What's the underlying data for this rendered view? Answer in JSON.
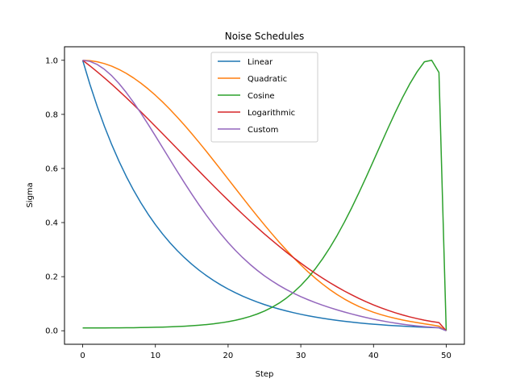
{
  "chart_data": {
    "type": "line",
    "title": "Noise Schedules",
    "xlabel": "Step",
    "ylabel": "Sigma",
    "xlim": [
      -2.5,
      52.5
    ],
    "ylim": [
      -0.05,
      1.05
    ],
    "xticks": [
      0,
      10,
      20,
      30,
      40,
      50
    ],
    "yticks": [
      0.0,
      0.2,
      0.4,
      0.6,
      0.8,
      1.0
    ],
    "xtick_labels": [
      "0",
      "10",
      "20",
      "30",
      "40",
      "50"
    ],
    "ytick_labels": [
      "0.0",
      "0.2",
      "0.4",
      "0.6",
      "0.8",
      "1.0"
    ],
    "grid": false,
    "legend_position": "top-center",
    "x": [
      0,
      1,
      2,
      3,
      4,
      5,
      6,
      7,
      8,
      9,
      10,
      11,
      12,
      13,
      14,
      15,
      16,
      17,
      18,
      19,
      20,
      21,
      22,
      23,
      24,
      25,
      26,
      27,
      28,
      29,
      30,
      31,
      32,
      33,
      34,
      35,
      36,
      37,
      38,
      39,
      40,
      41,
      42,
      43,
      44,
      45,
      46,
      47,
      48,
      49,
      50
    ],
    "series": [
      {
        "name": "Linear",
        "color": "#1f77b4",
        "values": [
          1.0,
          0.9107,
          0.8293,
          0.7553,
          0.6879,
          0.6264,
          0.5705,
          0.5196,
          0.4732,
          0.431,
          0.3925,
          0.3575,
          0.3256,
          0.2966,
          0.2701,
          0.246,
          0.2241,
          0.2041,
          0.1859,
          0.1693,
          0.1542,
          0.1405,
          0.128,
          0.1166,
          0.1062,
          0.0968,
          0.0882,
          0.0804,
          0.0733,
          0.0668,
          0.0609,
          0.0555,
          0.0506,
          0.0461,
          0.0421,
          0.0384,
          0.035,
          0.0319,
          0.0291,
          0.0265,
          0.0242,
          0.0221,
          0.0202,
          0.0185,
          0.0169,
          0.0154,
          0.0141,
          0.013,
          0.012,
          0.011,
          0.0
        ]
      },
      {
        "name": "Quadratic",
        "color": "#ff7f0e",
        "values": [
          1.0,
          0.9986,
          0.9945,
          0.9876,
          0.9782,
          0.9661,
          0.9516,
          0.9347,
          0.9155,
          0.8942,
          0.8708,
          0.8456,
          0.8186,
          0.79,
          0.7601,
          0.7289,
          0.6966,
          0.6635,
          0.6297,
          0.5955,
          0.561,
          0.5264,
          0.4919,
          0.4578,
          0.4242,
          0.3913,
          0.3593,
          0.3283,
          0.2986,
          0.2701,
          0.2432,
          0.2178,
          0.1941,
          0.1722,
          0.152,
          0.1337,
          0.1172,
          0.1026,
          0.0896,
          0.0783,
          0.0684,
          0.0598,
          0.0523,
          0.0457,
          0.0399,
          0.0347,
          0.03,
          0.0256,
          0.0214,
          0.0172,
          0.0
        ]
      },
      {
        "name": "Cosine",
        "color": "#2ca02c",
        "values": [
          0.0102,
          0.0102,
          0.0103,
          0.0104,
          0.0106,
          0.0108,
          0.011,
          0.0113,
          0.0117,
          0.0122,
          0.0128,
          0.0135,
          0.0144,
          0.0155,
          0.0168,
          0.0184,
          0.0204,
          0.0228,
          0.0257,
          0.0292,
          0.0335,
          0.0387,
          0.045,
          0.0526,
          0.0618,
          0.0729,
          0.0861,
          0.1018,
          0.1204,
          0.1421,
          0.1673,
          0.1962,
          0.2291,
          0.2661,
          0.3073,
          0.3526,
          0.4018,
          0.4546,
          0.5105,
          0.5688,
          0.6287,
          0.6892,
          0.7493,
          0.8076,
          0.8628,
          0.9134,
          0.9578,
          0.9945,
          1.0,
          0.955,
          0.0
        ]
      },
      {
        "name": "Logarithmic",
        "color": "#d62728",
        "values": [
          1.0,
          0.9793,
          0.9575,
          0.9347,
          0.9111,
          0.8866,
          0.8615,
          0.8357,
          0.8095,
          0.7828,
          0.7557,
          0.7284,
          0.7008,
          0.6732,
          0.6455,
          0.6178,
          0.5903,
          0.5629,
          0.5358,
          0.509,
          0.4826,
          0.4566,
          0.4311,
          0.4061,
          0.3818,
          0.358,
          0.335,
          0.3126,
          0.2909,
          0.27,
          0.2499,
          0.2306,
          0.2121,
          0.1945,
          0.1777,
          0.1618,
          0.1468,
          0.1327,
          0.1194,
          0.1071,
          0.0956,
          0.085,
          0.0753,
          0.0664,
          0.0584,
          0.0512,
          0.0448,
          0.0392,
          0.0343,
          0.0302,
          0.0
        ]
      },
      {
        "name": "Custom",
        "color": "#9467bd",
        "values": [
          1.0,
          0.9959,
          0.9845,
          0.9665,
          0.9427,
          0.9139,
          0.8808,
          0.8442,
          0.8048,
          0.7633,
          0.7204,
          0.6767,
          0.6329,
          0.5894,
          0.5468,
          0.5054,
          0.4656,
          0.4276,
          0.3916,
          0.3579,
          0.3264,
          0.2973,
          0.2705,
          0.2459,
          0.2235,
          0.2031,
          0.1846,
          0.1678,
          0.1526,
          0.1388,
          0.1262,
          0.1147,
          0.1041,
          0.0944,
          0.0854,
          0.077,
          0.0692,
          0.0619,
          0.0551,
          0.0488,
          0.0429,
          0.0375,
          0.0325,
          0.0281,
          0.0241,
          0.0207,
          0.0177,
          0.0151,
          0.0129,
          0.0111,
          0.0
        ]
      }
    ]
  }
}
